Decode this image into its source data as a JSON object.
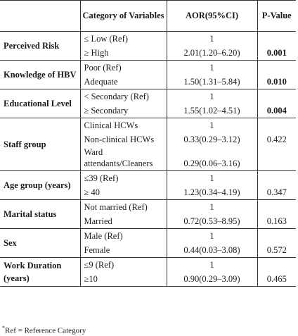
{
  "table": {
    "headers": [
      "",
      "Category of Variables",
      "AOR(95%CI)",
      "P-Value"
    ],
    "rows": [
      {
        "variable": "Perceived Risk",
        "categories": [
          "≤ Low (Ref)",
          "≥ High"
        ],
        "aor": [
          "1",
          "2.01(1.20–6.20)"
        ],
        "p": "0.001",
        "p_bold": true
      },
      {
        "variable": "Knowledge of HBV",
        "categories": [
          "Poor (Ref)",
          "Adequate"
        ],
        "aor": [
          "1",
          "1.50(1.31–5.84)"
        ],
        "p": "0.010",
        "p_bold": true
      },
      {
        "variable": "Educational Level",
        "categories": [
          "< Secondary (Ref)",
          "≥ Secondary"
        ],
        "aor": [
          "1",
          "1.55(1.02–4.51)"
        ],
        "p": "0.004",
        "p_bold": true
      },
      {
        "variable": "Staff group",
        "categories": [
          "Clinical HCWs",
          "Non-clinical HCWs",
          "Ward attendants/Cleaners"
        ],
        "aor": [
          "1",
          "0.33(0.29–3.12)",
          "0.29(0.06–3.16)"
        ],
        "p": "0.422",
        "p_bold": false
      },
      {
        "variable": "Age group (years)",
        "categories": [
          "≤39 (Ref)",
          "≥ 40"
        ],
        "aor": [
          "1",
          "1.23(0.34–4.19)"
        ],
        "p": "0.347",
        "p_bold": false
      },
      {
        "variable": "Marital status",
        "categories": [
          "Not married (Ref)",
          "Married"
        ],
        "aor": [
          "1",
          "0.72(0.53–8.95)"
        ],
        "p": "0.163",
        "p_bold": false
      },
      {
        "variable": "Sex",
        "categories": [
          "Male (Ref)",
          "Female"
        ],
        "aor": [
          "1",
          "0.44(0.03–3.08)"
        ],
        "p": "0.572",
        "p_bold": false
      },
      {
        "variable": "Work Duration (years)",
        "categories": [
          "≤9 (Ref)",
          "≥10"
        ],
        "aor": [
          "1",
          "0.90(0.29–3.09)"
        ],
        "p": "0.465",
        "p_bold": false
      }
    ]
  },
  "footnote": {
    "marker": "*",
    "text": "Ref = Reference Category"
  }
}
